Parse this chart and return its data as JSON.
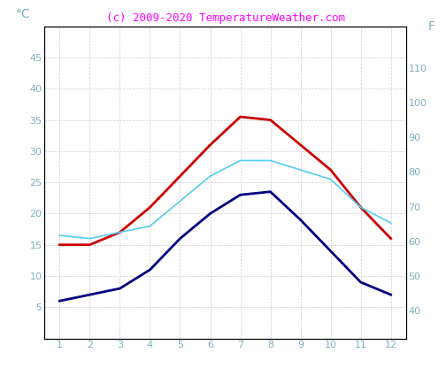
{
  "months": [
    1,
    2,
    3,
    4,
    5,
    6,
    7,
    8,
    9,
    10,
    11,
    12
  ],
  "air_temp": [
    15,
    15,
    17,
    21,
    26,
    31,
    35.5,
    35,
    31,
    27,
    21,
    16
  ],
  "water_temp": [
    16.5,
    16,
    17,
    18,
    22,
    26,
    28.5,
    28.5,
    27,
    25.5,
    21,
    18.5
  ],
  "min_temp": [
    6,
    7,
    8,
    11,
    16,
    20,
    23,
    23.5,
    19,
    14,
    9,
    7
  ],
  "air_color": "#cc0000",
  "water_color": "#55ccee",
  "min_color": "#000080",
  "background_color": "#ffffff",
  "grid_color": "#cccccc",
  "title": "(c) 2009-2020 TemperatureWeather.com",
  "title_color": "#ff00ff",
  "ylabel_left": "°C",
  "ylabel_right": "F",
  "ylim_left": [
    0,
    50
  ],
  "ylim_right": [
    32,
    122
  ],
  "yticks_left": [
    5,
    10,
    15,
    20,
    25,
    30,
    35,
    40,
    45
  ],
  "ytick_labels_left": [
    "5",
    "10",
    "15",
    "20",
    "25",
    "30",
    "35",
    "40",
    "45"
  ],
  "yticks_right": [
    40,
    50,
    60,
    70,
    80,
    90,
    100,
    110
  ],
  "ytick_labels_right": [
    "40",
    "50",
    "60",
    "70",
    "80",
    "90",
    "100",
    "110"
  ],
  "axis_color": "#000000",
  "tick_color": "#7ab0c0",
  "spine_color": "#000000",
  "title_fontsize": 9,
  "tick_fontsize": 8
}
